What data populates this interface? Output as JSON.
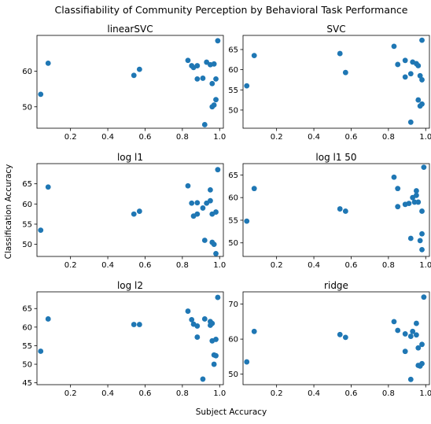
{
  "figure": {
    "suptitle": "Classifiability of Community Perception by Behavioral Task Performance",
    "xlabel": "Subject Accuracy",
    "ylabel": "Classification Accuracy",
    "marker_color": "#1f77b4"
  },
  "chart_data": [
    {
      "type": "scatter",
      "title": "linearSVC",
      "xlim": [
        0.02,
        1.02
      ],
      "ylim": [
        44,
        70
      ],
      "xticks": [
        0.2,
        0.4,
        0.6,
        0.8,
        1.0
      ],
      "xticklabels": [
        "0.2",
        "0.4",
        "0.6",
        "0.8",
        "1.0"
      ],
      "yticks": [
        50,
        60
      ],
      "yticklabels": [
        "50",
        "60"
      ],
      "points": [
        [
          0.04,
          53.5
        ],
        [
          0.08,
          62.2
        ],
        [
          0.54,
          58.8
        ],
        [
          0.57,
          60.5
        ],
        [
          0.83,
          63.0
        ],
        [
          0.85,
          61.5
        ],
        [
          0.86,
          61.0
        ],
        [
          0.88,
          61.5
        ],
        [
          0.88,
          57.8
        ],
        [
          0.91,
          58.0
        ],
        [
          0.92,
          45.0
        ],
        [
          0.93,
          62.5
        ],
        [
          0.95,
          61.8
        ],
        [
          0.96,
          50.0
        ],
        [
          0.96,
          56.5
        ],
        [
          0.97,
          50.5
        ],
        [
          0.97,
          62.0
        ],
        [
          0.98,
          52.0
        ],
        [
          0.98,
          57.8
        ],
        [
          0.99,
          68.5
        ]
      ]
    },
    {
      "type": "scatter",
      "title": "SVC",
      "xlim": [
        0.02,
        1.02
      ],
      "ylim": [
        45.5,
        68.5
      ],
      "xticks": [
        0.2,
        0.4,
        0.6,
        0.8,
        1.0
      ],
      "xticklabels": [
        "0.2",
        "0.4",
        "0.6",
        "0.8",
        "1.0"
      ],
      "yticks": [
        50,
        55,
        60,
        65
      ],
      "yticklabels": [
        "50",
        "55",
        "60",
        "65"
      ],
      "points": [
        [
          0.04,
          56.0
        ],
        [
          0.08,
          63.5
        ],
        [
          0.54,
          64.0
        ],
        [
          0.57,
          59.3
        ],
        [
          0.83,
          65.8
        ],
        [
          0.85,
          61.3
        ],
        [
          0.89,
          62.3
        ],
        [
          0.89,
          58.2
        ],
        [
          0.92,
          59.0
        ],
        [
          0.92,
          47.0
        ],
        [
          0.93,
          61.9
        ],
        [
          0.95,
          61.5
        ],
        [
          0.96,
          61.0
        ],
        [
          0.96,
          52.5
        ],
        [
          0.97,
          58.5
        ],
        [
          0.97,
          51.0
        ],
        [
          0.98,
          51.5
        ],
        [
          0.98,
          57.5
        ],
        [
          0.98,
          67.3
        ]
      ]
    },
    {
      "type": "scatter",
      "title": "log l1",
      "xlim": [
        0.02,
        1.02
      ],
      "ylim": [
        47,
        70
      ],
      "xticks": [
        0.2,
        0.4,
        0.6,
        0.8,
        1.0
      ],
      "xticklabels": [
        "0.2",
        "0.4",
        "0.6",
        "0.8",
        "1.0"
      ],
      "yticks": [
        50,
        55,
        60,
        65
      ],
      "yticklabels": [
        "50",
        "55",
        "60",
        "65"
      ],
      "points": [
        [
          0.04,
          53.5
        ],
        [
          0.08,
          64.2
        ],
        [
          0.54,
          57.5
        ],
        [
          0.57,
          58.2
        ],
        [
          0.83,
          64.5
        ],
        [
          0.85,
          60.2
        ],
        [
          0.86,
          57.0
        ],
        [
          0.88,
          57.5
        ],
        [
          0.88,
          60.3
        ],
        [
          0.91,
          59.0
        ],
        [
          0.92,
          51.0
        ],
        [
          0.93,
          60.2
        ],
        [
          0.95,
          60.8
        ],
        [
          0.95,
          63.5
        ],
        [
          0.96,
          50.5
        ],
        [
          0.96,
          57.5
        ],
        [
          0.97,
          50.0
        ],
        [
          0.98,
          47.7
        ],
        [
          0.98,
          58.0
        ],
        [
          0.99,
          68.5
        ]
      ]
    },
    {
      "type": "scatter",
      "title": "log l1 50",
      "xlim": [
        0.02,
        1.02
      ],
      "ylim": [
        47,
        67.5
      ],
      "xticks": [
        0.2,
        0.4,
        0.6,
        0.8,
        1.0
      ],
      "xticklabels": [
        "0.2",
        "0.4",
        "0.6",
        "0.8",
        "1.0"
      ],
      "yticks": [
        50,
        55,
        60,
        65
      ],
      "yticklabels": [
        "50",
        "55",
        "60",
        "65"
      ],
      "points": [
        [
          0.04,
          54.8
        ],
        [
          0.08,
          62.0
        ],
        [
          0.54,
          57.5
        ],
        [
          0.57,
          57.0
        ],
        [
          0.83,
          64.5
        ],
        [
          0.85,
          58.0
        ],
        [
          0.85,
          62.0
        ],
        [
          0.89,
          58.5
        ],
        [
          0.91,
          58.7
        ],
        [
          0.92,
          51.0
        ],
        [
          0.93,
          60.0
        ],
        [
          0.94,
          59.0
        ],
        [
          0.95,
          61.5
        ],
        [
          0.95,
          60.5
        ],
        [
          0.96,
          59.0
        ],
        [
          0.97,
          50.5
        ],
        [
          0.98,
          48.5
        ],
        [
          0.98,
          52.0
        ],
        [
          0.98,
          57.0
        ],
        [
          0.99,
          66.7
        ]
      ]
    },
    {
      "type": "scatter",
      "title": "log l2",
      "xlim": [
        0.02,
        1.02
      ],
      "ylim": [
        44.5,
        69.5
      ],
      "xticks": [
        0.2,
        0.4,
        0.6,
        0.8,
        1.0
      ],
      "xticklabels": [
        "0.2",
        "0.4",
        "0.6",
        "0.8",
        "1.0"
      ],
      "yticks": [
        45,
        50,
        55,
        60,
        65
      ],
      "yticklabels": [
        "45",
        "50",
        "55",
        "60",
        "65"
      ],
      "points": [
        [
          0.04,
          53.5
        ],
        [
          0.08,
          62.2
        ],
        [
          0.54,
          60.7
        ],
        [
          0.57,
          60.7
        ],
        [
          0.83,
          64.3
        ],
        [
          0.85,
          62.0
        ],
        [
          0.86,
          60.8
        ],
        [
          0.88,
          57.3
        ],
        [
          0.88,
          60.3
        ],
        [
          0.91,
          46.0
        ],
        [
          0.92,
          62.2
        ],
        [
          0.95,
          60.5
        ],
        [
          0.95,
          61.5
        ],
        [
          0.96,
          61.0
        ],
        [
          0.96,
          56.3
        ],
        [
          0.97,
          50.0
        ],
        [
          0.97,
          52.5
        ],
        [
          0.98,
          52.3
        ],
        [
          0.98,
          56.7
        ],
        [
          0.99,
          68.0
        ]
      ]
    },
    {
      "type": "scatter",
      "title": "ridge",
      "xlim": [
        0.02,
        1.02
      ],
      "ylim": [
        47,
        73.5
      ],
      "xticks": [
        0.2,
        0.4,
        0.6,
        0.8,
        1.0
      ],
      "xticklabels": [
        "0.2",
        "0.4",
        "0.6",
        "0.8",
        "1.0"
      ],
      "yticks": [
        50,
        60,
        70
      ],
      "yticklabels": [
        "50",
        "60",
        "70"
      ],
      "points": [
        [
          0.04,
          53.5
        ],
        [
          0.08,
          62.2
        ],
        [
          0.54,
          61.3
        ],
        [
          0.57,
          60.5
        ],
        [
          0.83,
          65.0
        ],
        [
          0.85,
          62.5
        ],
        [
          0.89,
          56.5
        ],
        [
          0.89,
          61.5
        ],
        [
          0.92,
          48.5
        ],
        [
          0.92,
          60.8
        ],
        [
          0.93,
          62.2
        ],
        [
          0.95,
          64.5
        ],
        [
          0.95,
          61.2
        ],
        [
          0.96,
          52.5
        ],
        [
          0.96,
          57.5
        ],
        [
          0.97,
          52.3
        ],
        [
          0.98,
          58.5
        ],
        [
          0.98,
          53.0
        ],
        [
          0.99,
          72.0
        ]
      ]
    }
  ]
}
